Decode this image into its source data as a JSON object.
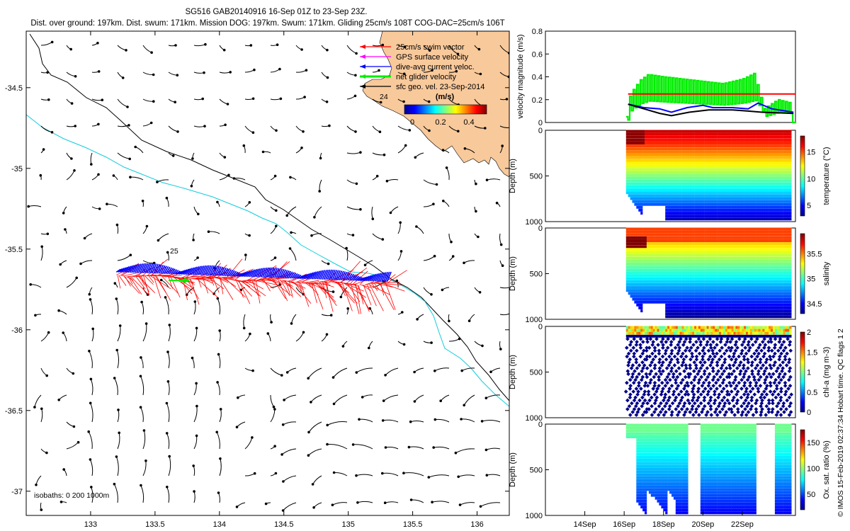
{
  "title": {
    "line1": "SG516 GAB20140916 16-Sep 01Z to 23-Sep 23Z.",
    "line2": "Dist. over ground: 197km. Dist. swum: 171km. Mission DOG: 197km. Swum: 171km. Gliding 25cm/s 108T COG-DAC=25cm/s 106T"
  },
  "side_note": "© IMOS 15-Feb-2019 02:37:34 Hobart time. QC flags 1 2",
  "colors": {
    "land": "#f8c99b",
    "coast_shelf": "#000000",
    "isobath_200": "#11ccdd",
    "swim_vector": "#ff0000",
    "dive_avg": "#0000ff",
    "net_velocity": "#00ee00",
    "gps_surface": "#ff00ff",
    "sfc_geo": "#000000"
  },
  "map": {
    "legend": [
      {
        "label": "25cm/s swim vector",
        "color": "#ff0000"
      },
      {
        "label": "GPS surface velocity",
        "color": "#ff00ff"
      },
      {
        "label": "dive-avg current veloc.",
        "color": "#0000ff"
      },
      {
        "label": "net glider velocity",
        "color": "#00ee00"
      },
      {
        "label": "sfc geo. vel. 23-Sep-2014",
        "color": "#000000"
      }
    ],
    "colorbar": {
      "unit": "(m/s)",
      "ticks": [
        "0",
        "0.2",
        "0.4"
      ]
    },
    "label_24": "24",
    "label_25": "25",
    "isobaths_note": "isobaths: 0   200  1000m"
  },
  "chart_data": [
    {
      "type": "scatter",
      "name": "map",
      "xlim": [
        132.5,
        136.25
      ],
      "ylim": [
        -37.15,
        -34.15
      ],
      "x_ticks": [
        "133",
        "133.5",
        "134",
        "134.5",
        "135",
        "135.5",
        "136"
      ],
      "y_ticks": [
        "-34.5",
        "-35",
        "-35.5",
        "-36",
        "-36.5",
        "-37"
      ],
      "glider_track": {
        "start": [
          133.2,
          -35.66
        ],
        "end": [
          135.3,
          -35.72
        ]
      }
    },
    {
      "type": "line",
      "name": "velocity",
      "ylabel": "velocity magnitude (m/s)",
      "y_ticks": [
        "0",
        "0.2",
        "0.4",
        "0.6",
        "0.8"
      ],
      "ylim": [
        0,
        0.8
      ],
      "xlim_days": [
        12,
        24.7
      ],
      "reference_swim": 0.25,
      "net_velocity": [
        [
          16.1,
          0.05
        ],
        [
          16.3,
          0.25
        ],
        [
          16.8,
          0.37
        ],
        [
          17.2,
          0.42
        ],
        [
          18,
          0.4
        ],
        [
          19,
          0.38
        ],
        [
          20,
          0.36
        ],
        [
          21,
          0.34
        ],
        [
          22,
          0.38
        ],
        [
          22.6,
          0.43
        ],
        [
          23.1,
          0.12
        ],
        [
          23.8,
          0.2
        ],
        [
          24.5,
          0.17
        ]
      ],
      "dive_avg": [
        [
          16.2,
          0.16
        ],
        [
          17,
          0.13
        ],
        [
          17.8,
          0.12
        ],
        [
          18.4,
          0.09
        ],
        [
          19.2,
          0.13
        ],
        [
          20,
          0.15
        ],
        [
          20.5,
          0.13
        ],
        [
          21.5,
          0.13
        ],
        [
          22.3,
          0.12
        ],
        [
          22.8,
          0.17
        ],
        [
          23.5,
          0.12
        ],
        [
          24.6,
          0.09
        ]
      ],
      "sfc_geo": [
        [
          16.2,
          0.16
        ],
        [
          17,
          0.12
        ],
        [
          17.8,
          0.08
        ],
        [
          18.4,
          0.06
        ],
        [
          19.3,
          0.09
        ],
        [
          20.3,
          0.11
        ],
        [
          21.5,
          0.11
        ],
        [
          22.3,
          0.1
        ],
        [
          23,
          0.09
        ],
        [
          24.6,
          0.08
        ]
      ]
    },
    {
      "type": "heatmap",
      "name": "temperature",
      "ylabel": "Depth (m)",
      "cbar_label": "temperature (°C)",
      "cbar_ticks": [
        "5",
        "10",
        "15"
      ],
      "crange": [
        3,
        18
      ],
      "y_ticks": [
        "0",
        "500",
        "1000"
      ]
    },
    {
      "type": "heatmap",
      "name": "salinity",
      "ylabel": "Depth (m)",
      "cbar_label": "salinity",
      "cbar_ticks": [
        "34.5",
        "35",
        "35.5"
      ],
      "crange": [
        34.3,
        35.9
      ],
      "y_ticks": [
        "0",
        "500",
        "1000"
      ]
    },
    {
      "type": "heatmap",
      "name": "chla",
      "ylabel": "Depth (m)",
      "cbar_label": "chl-a (mg m-3)",
      "cbar_ticks": [
        "0",
        "0.5",
        "1",
        "1.5",
        "2"
      ],
      "crange": [
        0,
        2
      ],
      "y_ticks": [
        "0",
        "500",
        "1000"
      ]
    },
    {
      "type": "heatmap",
      "name": "oxygen",
      "ylabel": "Depth (m)",
      "cbar_label": "Ox. sat. ratio (%)",
      "cbar_ticks": [
        "50",
        "100",
        "150"
      ],
      "crange": [
        20,
        175
      ],
      "y_ticks": [
        "0",
        "500",
        "1000"
      ],
      "x_ticks": [
        "14Sep",
        "16Sep",
        "18Sep",
        "20Sep",
        "22Sep"
      ]
    }
  ]
}
